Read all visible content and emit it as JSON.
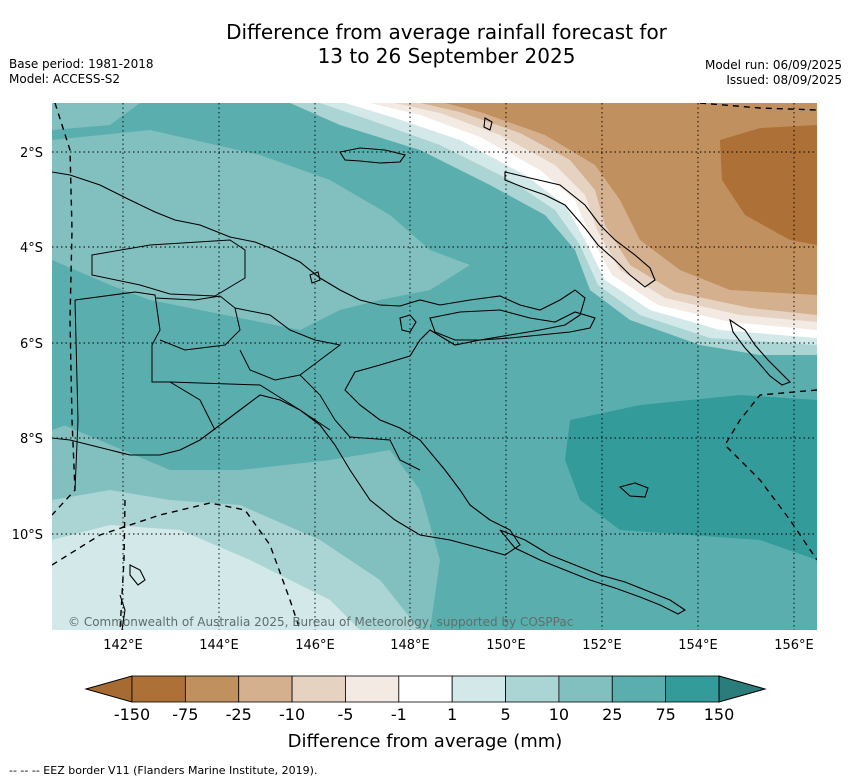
{
  "header": {
    "title_line1": "Difference from average rainfall forecast for",
    "title_line2": "13 to 26 September 2025",
    "base_period": "Base period: 1981-2018",
    "model": "Model: ACCESS-S2",
    "model_run": "Model run: 06/09/2025",
    "issued": "Issued: 08/09/2025"
  },
  "map": {
    "region": "Papua New Guinea",
    "lat_labels": [
      "2°S",
      "4°S",
      "6°S",
      "8°S",
      "10°S"
    ],
    "lon_labels": [
      "142°E",
      "144°E",
      "146°E",
      "148°E",
      "150°E",
      "152°E",
      "154°E",
      "156°E"
    ],
    "copyright": "© Commonwealth of Australia 2025, Bureau of Meteorology, supported by COSPPac",
    "gridlines": true
  },
  "legend": {
    "title": "Difference from average (mm)",
    "ticks": [
      "-150",
      "-75",
      "-25",
      "-10",
      "-5",
      "-1",
      "1",
      "5",
      "10",
      "25",
      "75",
      "150"
    ],
    "colors": [
      "#a56b33",
      "#ad7138",
      "#c0905f",
      "#d4b08f",
      "#e6d2c1",
      "#f3eae4",
      "#ffffff",
      "#d3e9e9",
      "#abd5d5",
      "#82bfbf",
      "#5baeae",
      "#339c9a",
      "#2b7d7b"
    ]
  },
  "footer": {
    "eez_note": "--  --  -- EEZ border V11 (Flanders Marine Institute, 2019)."
  }
}
